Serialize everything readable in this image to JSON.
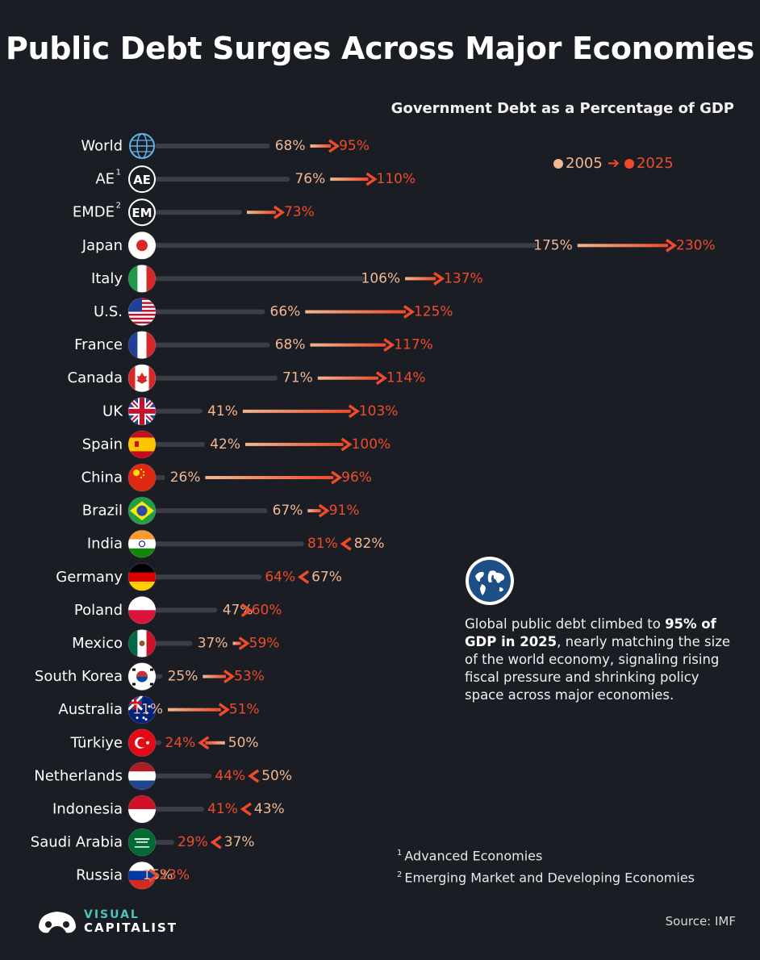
{
  "header": {
    "title": "Public Debt Surges Across Major Economies",
    "subtitle": "Government Debt as a Percentage of GDP"
  },
  "legend": {
    "label_2005": "2005",
    "label_2025": "2025",
    "color_2005": "#f2b791",
    "color_2025": "#ee4b2b"
  },
  "colors": {
    "background": "#1b1d24",
    "track": "#3b3e47",
    "value_2005": "#f2b791",
    "value_2025": "#ee4b2b"
  },
  "chart_data": {
    "type": "bar",
    "title": "Public Debt Surges Across Major Economies",
    "subtitle": "Government Debt as a Percentage of GDP",
    "unit": "%",
    "xlim": [
      0,
      230
    ],
    "series_names": [
      "2005",
      "2025"
    ],
    "rows": [
      {
        "name": "World",
        "sup": "",
        "icon": "globe-icon",
        "v2005": 68,
        "v2025": 95
      },
      {
        "name": "AE",
        "sup": "1",
        "icon": "ae-badge-icon",
        "v2005": 76,
        "v2025": 110
      },
      {
        "name": "EMDE",
        "sup": "2",
        "icon": "em-badge-icon",
        "v2005": null,
        "v2025": 73
      },
      {
        "name": "Japan",
        "sup": "",
        "icon": "japan-flag-icon",
        "v2005": 175,
        "v2025": 230
      },
      {
        "name": "Italy",
        "sup": "",
        "icon": "italy-flag-icon",
        "v2005": 106,
        "v2025": 137
      },
      {
        "name": "U.S.",
        "sup": "",
        "icon": "us-flag-icon",
        "v2005": 66,
        "v2025": 125
      },
      {
        "name": "France",
        "sup": "",
        "icon": "france-flag-icon",
        "v2005": 68,
        "v2025": 117
      },
      {
        "name": "Canada",
        "sup": "",
        "icon": "canada-flag-icon",
        "v2005": 71,
        "v2025": 114
      },
      {
        "name": "UK",
        "sup": "",
        "icon": "uk-flag-icon",
        "v2005": 41,
        "v2025": 103
      },
      {
        "name": "Spain",
        "sup": "",
        "icon": "spain-flag-icon",
        "v2005": 42,
        "v2025": 100
      },
      {
        "name": "China",
        "sup": "",
        "icon": "china-flag-icon",
        "v2005": 26,
        "v2025": 96
      },
      {
        "name": "Brazil",
        "sup": "",
        "icon": "brazil-flag-icon",
        "v2005": 67,
        "v2025": 91
      },
      {
        "name": "India",
        "sup": "",
        "icon": "india-flag-icon",
        "v2005": 82,
        "v2025": 81
      },
      {
        "name": "Germany",
        "sup": "",
        "icon": "germany-flag-icon",
        "v2005": 67,
        "v2025": 64
      },
      {
        "name": "Poland",
        "sup": "",
        "icon": "poland-flag-icon",
        "v2005": 47,
        "v2025": 60
      },
      {
        "name": "Mexico",
        "sup": "",
        "icon": "mexico-flag-icon",
        "v2005": 37,
        "v2025": 59
      },
      {
        "name": "South Korea",
        "sup": "",
        "icon": "south-korea-flag-icon",
        "v2005": 25,
        "v2025": 53
      },
      {
        "name": "Australia",
        "sup": "",
        "icon": "australia-flag-icon",
        "v2005": 11,
        "v2025": 51
      },
      {
        "name": "Türkiye",
        "sup": "",
        "icon": "turkiye-flag-icon",
        "v2005": 50,
        "v2025": 24
      },
      {
        "name": "Netherlands",
        "sup": "",
        "icon": "netherlands-flag-icon",
        "v2005": 50,
        "v2025": 44
      },
      {
        "name": "Indonesia",
        "sup": "",
        "icon": "indonesia-flag-icon",
        "v2005": 43,
        "v2025": 41
      },
      {
        "name": "Saudi Arabia",
        "sup": "",
        "icon": "saudi-arabia-flag-icon",
        "v2005": 37,
        "v2025": 29
      },
      {
        "name": "Russia",
        "sup": "",
        "icon": "russia-flag-icon",
        "v2005": 15,
        "v2025": 23
      }
    ]
  },
  "callout": {
    "icon": "world-map-icon",
    "text_pre": "Global public debt climbed to ",
    "text_bold": "95% of GDP in 2025",
    "text_post": ", nearly matching the size of the world economy, signaling rising fiscal pressure and shrinking policy space across major economies."
  },
  "footnotes": [
    {
      "mark": "1",
      "text": "Advanced Economies"
    },
    {
      "mark": "2",
      "text": "Emerging Market and Developing Economies"
    }
  ],
  "source": "Source: IMF",
  "brand": {
    "top": "VISUAL",
    "bottom": "CAPITALIST"
  }
}
